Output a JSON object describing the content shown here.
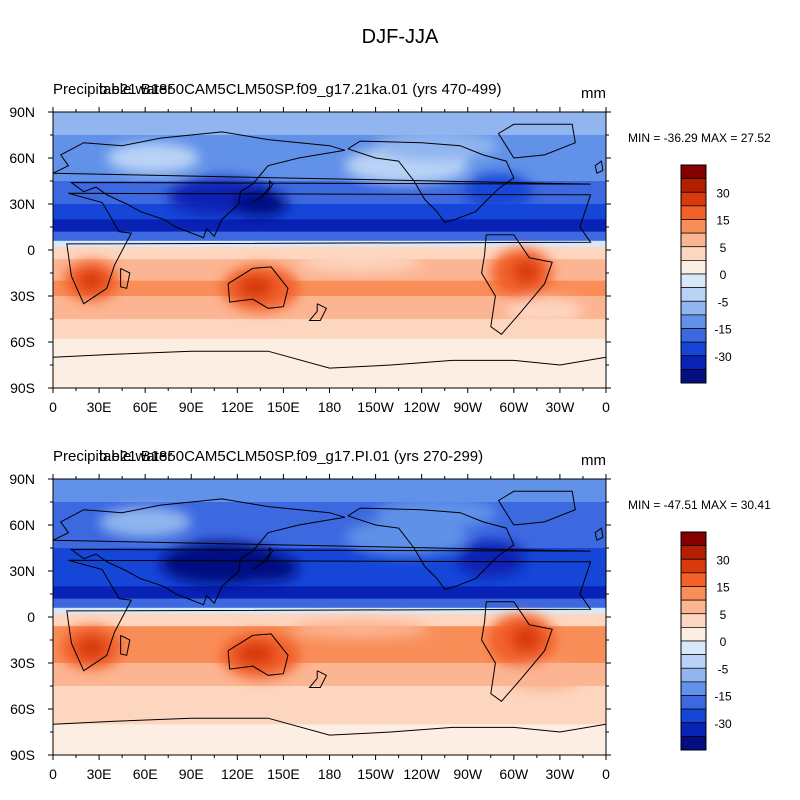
{
  "main_title": "DJF-JJA",
  "colorbar": {
    "colors": [
      "#840000",
      "#b31f00",
      "#d83a0b",
      "#f2612a",
      "#f98e59",
      "#fcb592",
      "#fdd6c0",
      "#fdeee4",
      "#d8e8fb",
      "#b9d3f6",
      "#90b5ef",
      "#6191e8",
      "#3c68e0",
      "#1546d8",
      "#0722b4",
      "#050e80"
    ],
    "labels": [
      "30",
      "15",
      "5",
      "0",
      "-5",
      "-15",
      "-30"
    ]
  },
  "maps": [
    {
      "left_title": "Precipitable water",
      "case_title": "b.e21.B1850CAM5CLM50SP.f09_g17.21ka.01 (yrs 470-499)",
      "units": "mm",
      "stats": "MIN = -36.29 MAX =  27.52",
      "lat_labels": [
        "90N",
        "60N",
        "30N",
        "0",
        "30S",
        "60S",
        "90S"
      ],
      "lon_labels": [
        "0",
        "30E",
        "60E",
        "90E",
        "120E",
        "150E",
        "180",
        "150W",
        "120W",
        "90W",
        "60W",
        "30W",
        "0"
      ]
    },
    {
      "left_title": "Precipitable water",
      "case_title": "b.e21.B1850CAM5CLM50SP.f09_g17.PI.01 (yrs 270-299)",
      "units": "mm",
      "stats": "MIN = -47.51 MAX =  30.41",
      "lat_labels": [
        "90N",
        "60N",
        "30N",
        "0",
        "30S",
        "60S",
        "90S"
      ],
      "lon_labels": [
        "0",
        "30E",
        "60E",
        "90E",
        "120E",
        "150E",
        "180",
        "150W",
        "120W",
        "90W",
        "60W",
        "30W",
        "0"
      ]
    }
  ]
}
